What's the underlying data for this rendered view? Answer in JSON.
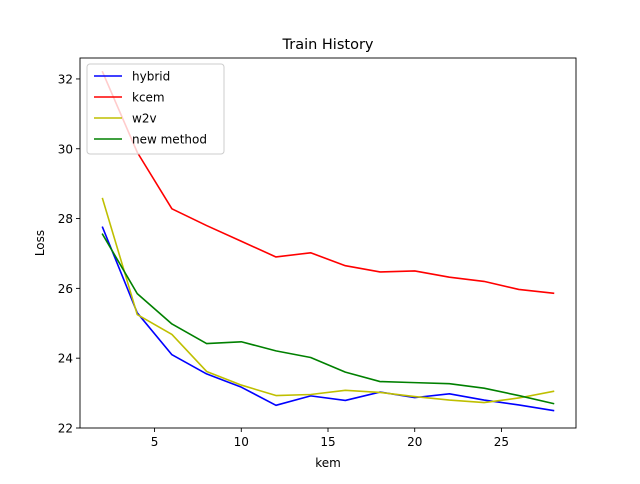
{
  "chart_data": {
    "type": "line",
    "title": "Train History",
    "xlabel": "kem",
    "ylabel": "Loss",
    "xlim": [
      0.7,
      29.3
    ],
    "ylim": [
      22,
      32.6
    ],
    "xticks": [
      5,
      10,
      15,
      20,
      25
    ],
    "yticks": [
      22,
      24,
      26,
      28,
      30,
      32
    ],
    "grid": false,
    "legend_position": "top-left",
    "x": [
      2,
      4,
      6,
      8,
      10,
      12,
      14,
      16,
      18,
      20,
      22,
      24,
      26,
      28
    ],
    "series": [
      {
        "name": "hybrid",
        "color": "#0000ff",
        "values": [
          27.75,
          25.3,
          24.1,
          23.55,
          23.17,
          22.65,
          22.92,
          22.79,
          23.03,
          22.87,
          22.98,
          22.8,
          22.66,
          22.5
        ]
      },
      {
        "name": "kcem",
        "color": "#ff0000",
        "values": [
          32.2,
          29.9,
          28.28,
          27.8,
          27.35,
          26.9,
          27.02,
          26.65,
          26.47,
          26.5,
          26.32,
          26.2,
          25.97,
          25.86
        ]
      },
      {
        "name": "w2v",
        "color": "#bfbf00",
        "values": [
          28.57,
          25.25,
          24.68,
          23.62,
          23.23,
          22.93,
          22.96,
          23.08,
          23.02,
          22.9,
          22.8,
          22.73,
          22.86,
          23.05
        ]
      },
      {
        "name": "new method",
        "color": "#008000",
        "values": [
          27.55,
          25.85,
          24.98,
          24.42,
          24.47,
          24.21,
          24.02,
          23.6,
          23.33,
          23.3,
          23.27,
          23.14,
          22.93,
          22.7
        ]
      }
    ]
  }
}
